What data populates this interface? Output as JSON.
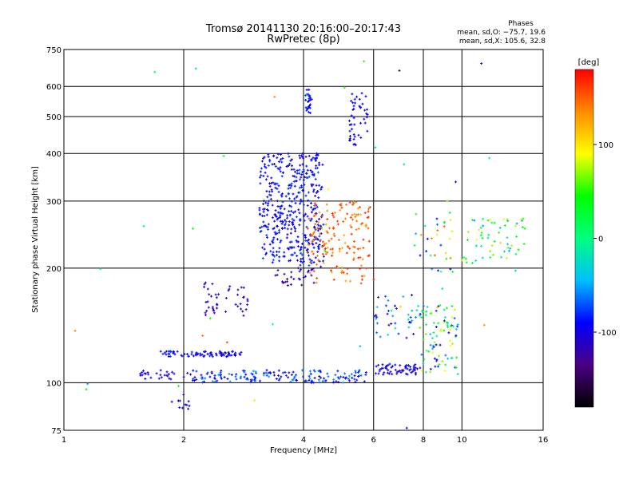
{
  "chart_data": {
    "type": "scatter",
    "title": "Tromsø 20141130 20:16:00–20:17:43",
    "subtitle": "RwPretec (8p)",
    "xlabel": "Frequency [MHz]",
    "ylabel": "Stationary phase Virtual Height [km]",
    "x_scale": "log",
    "y_scale": "log",
    "xlim": [
      1,
      16
    ],
    "ylim": [
      75,
      750
    ],
    "x_ticks": [
      {
        "value": 1,
        "label": "1"
      },
      {
        "value": 2,
        "label": "2"
      },
      {
        "value": 4,
        "label": "4"
      },
      {
        "value": 6,
        "label": "6"
      },
      {
        "value": 8,
        "label": "8"
      },
      {
        "value": 10,
        "label": "10"
      },
      {
        "value": 16,
        "label": "16"
      }
    ],
    "y_ticks": [
      {
        "value": 75,
        "label": "75"
      },
      {
        "value": 100,
        "label": "100"
      },
      {
        "value": 200,
        "label": "200"
      },
      {
        "value": 300,
        "label": "300"
      },
      {
        "value": 400,
        "label": "400"
      },
      {
        "value": 500,
        "label": "500"
      },
      {
        "value": 600,
        "label": "600"
      },
      {
        "value": 750,
        "label": "750"
      }
    ],
    "grid": true,
    "phases_title": "Phases",
    "phases_o": "mean, sd,O: −75.7, 19.6",
    "phases_x": "mean, sd,X: 105.6, 32.8",
    "colorbar": {
      "label": "[deg]",
      "min": -180,
      "max": 180,
      "ticks": [
        {
          "value": 100,
          "label": "100"
        },
        {
          "value": 0,
          "label": "0"
        },
        {
          "value": -100,
          "label": "-100"
        }
      ],
      "colors": [
        "#000000",
        "#4b0082",
        "#0000ff",
        "#00bfff",
        "#00ff7f",
        "#00ff00",
        "#ffff00",
        "#ff8c00",
        "#ff0000"
      ]
    },
    "clusters": [
      {
        "f": [
          1.55,
          1.9
        ],
        "h": [
          102,
          108
        ],
        "n": 25,
        "phase": [
          -120,
          -85
        ]
      },
      {
        "f": [
          1.75,
          2.8
        ],
        "h": [
          117,
          121
        ],
        "n": 80,
        "phase": [
          -110,
          -80
        ]
      },
      {
        "f": [
          2.0,
          5.8
        ],
        "h": [
          100,
          108
        ],
        "n": 170,
        "phase": [
          -115,
          -50
        ]
      },
      {
        "f": [
          2.25,
          2.9
        ],
        "h": [
          150,
          185
        ],
        "n": 45,
        "phase": [
          -130,
          -95
        ]
      },
      {
        "f": [
          1.85,
          2.1
        ],
        "h": [
          85,
          93
        ],
        "n": 12,
        "phase": [
          -120,
          -90
        ]
      },
      {
        "f": [
          3.1,
          3.9
        ],
        "h": [
          205,
          400
        ],
        "n": 260,
        "phase": [
          -110,
          -75
        ]
      },
      {
        "f": [
          3.9,
          4.5
        ],
        "h": [
          200,
          400
        ],
        "n": 180,
        "phase": [
          -110,
          -70
        ]
      },
      {
        "f": [
          4.05,
          4.2
        ],
        "h": [
          510,
          590
        ],
        "n": 25,
        "phase": [
          -100,
          -80
        ]
      },
      {
        "f": [
          5.2,
          5.8
        ],
        "h": [
          420,
          580
        ],
        "n": 45,
        "phase": [
          -100,
          -85
        ]
      },
      {
        "f": [
          4.1,
          5.9
        ],
        "h": [
          182,
          300
        ],
        "n": 160,
        "phase": [
          120,
          170
        ]
      },
      {
        "f": [
          3.4,
          4.3
        ],
        "h": [
          180,
          200
        ],
        "n": 30,
        "phase": [
          -130,
          -100
        ]
      },
      {
        "f": [
          6.0,
          7.9
        ],
        "h": [
          105,
          112
        ],
        "n": 60,
        "phase": [
          -120,
          -80
        ]
      },
      {
        "f": [
          6.0,
          7.8
        ],
        "h": [
          130,
          170
        ],
        "n": 40,
        "phase": [
          -130,
          -20
        ]
      },
      {
        "f": [
          7.8,
          9.8
        ],
        "h": [
          105,
          160
        ],
        "n": 90,
        "phase": [
          -120,
          100
        ]
      },
      {
        "f": [
          7.5,
          9.5
        ],
        "h": [
          190,
          280
        ],
        "n": 30,
        "phase": [
          -110,
          150
        ]
      },
      {
        "f": [
          9.8,
          14.5
        ],
        "h": [
          200,
          270
        ],
        "n": 60,
        "phase": [
          -60,
          110
        ]
      },
      {
        "f": [
          1.0,
          16.0
        ],
        "h": [
          75,
          700
        ],
        "n": 40,
        "phase": [
          -130,
          170
        ]
      }
    ]
  }
}
